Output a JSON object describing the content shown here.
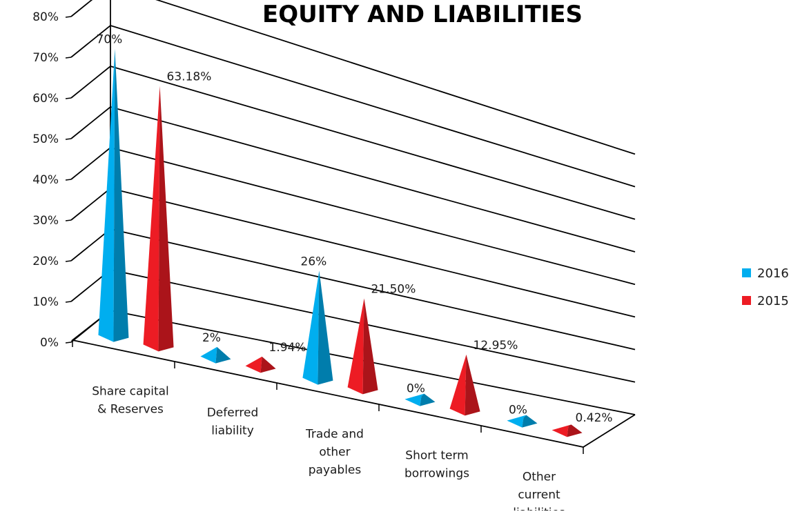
{
  "chart_data": {
    "type": "bar",
    "title": "EQUITY AND LIABILITIES",
    "categories": [
      [
        "Share capital",
        "& Reserves"
      ],
      [
        "Deferred",
        "liability"
      ],
      [
        "Trade and",
        "other",
        "payables"
      ],
      [
        "Short term",
        "borrowings"
      ],
      [
        "Other",
        "current",
        "liabilities"
      ]
    ],
    "series": [
      {
        "name": "2016",
        "color": "#00AEEF",
        "values": [
          70,
          2,
          26,
          0,
          0
        ],
        "labels": [
          "70%",
          "2%",
          "26%",
          "0%",
          "0%"
        ]
      },
      {
        "name": "2015",
        "color": "#ED1C24",
        "values": [
          63.18,
          1.94,
          21.5,
          12.95,
          0.42
        ],
        "labels": [
          "63.18%",
          "1.94%",
          "21.50%",
          "12.95%",
          "0.42%"
        ]
      }
    ],
    "yticks": [
      "0%",
      "10%",
      "20%",
      "30%",
      "40%",
      "50%",
      "60%",
      "70%",
      "80%"
    ],
    "ylim": [
      0,
      80
    ],
    "grid": true,
    "legend_position": "right",
    "shape": "pyramid-3d"
  }
}
